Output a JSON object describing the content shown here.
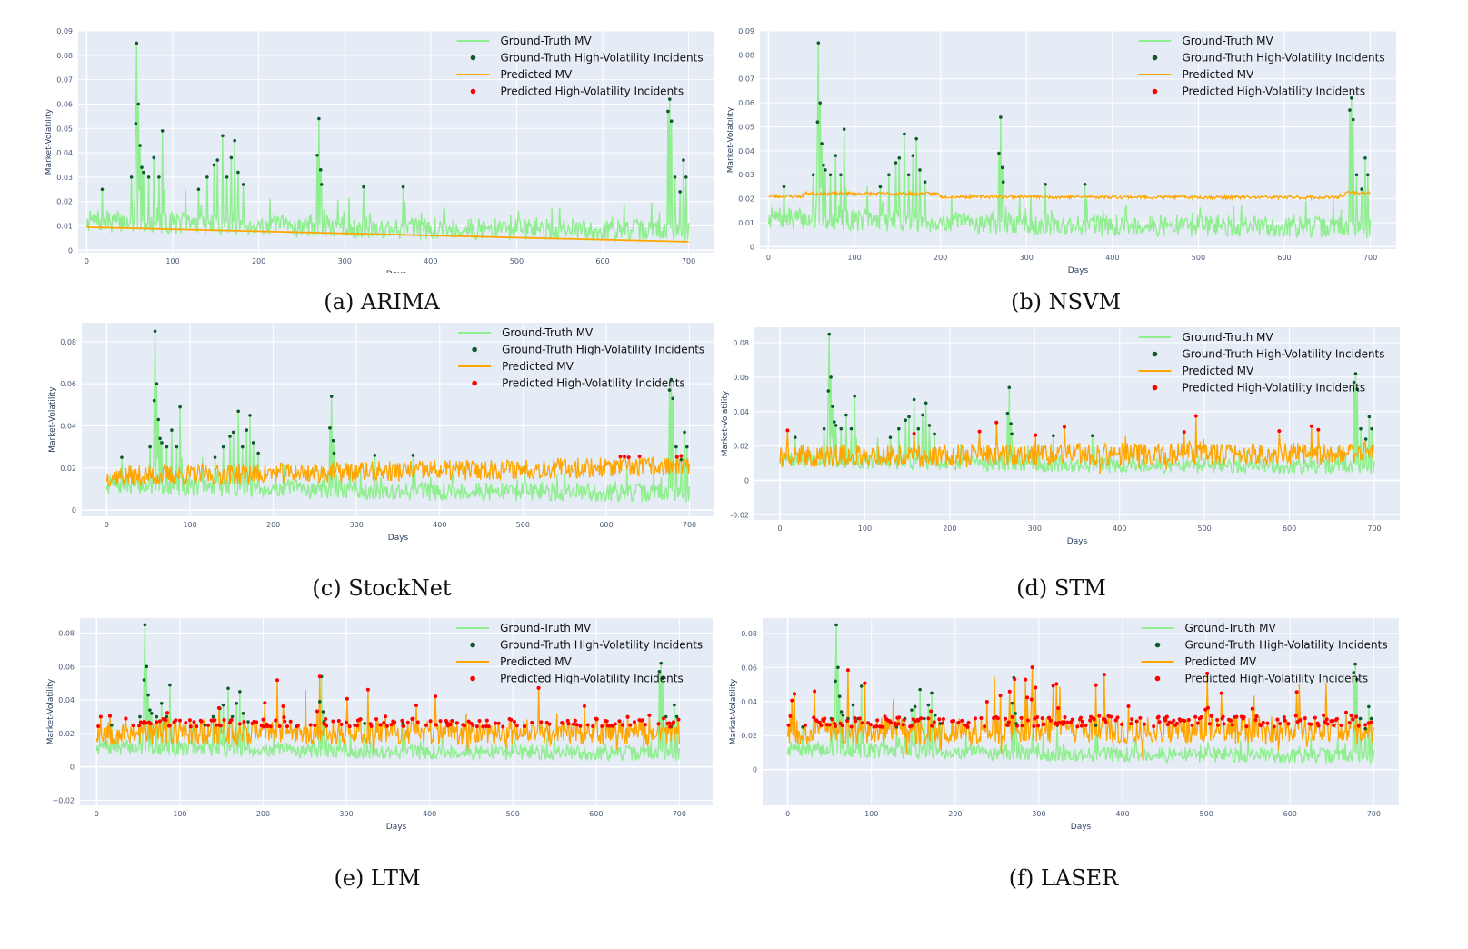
{
  "colors": {
    "background": "#ffffff",
    "plot_bg": "#e5ecf6",
    "grid": "#ffffff",
    "ground_truth_line": "#90ee90",
    "ground_truth_marker": "#0f5a2a",
    "predicted_line": "#ffa500",
    "predicted_marker": "#ff0000"
  },
  "legend": {
    "entries": [
      "Ground-Truth MV",
      "Ground-Truth High-Volatility Incidents",
      "Predicted MV",
      "Predicted High-Volatility Incidents"
    ],
    "placement": "top-right"
  },
  "chart_data": [
    {
      "caption": "(a) ARIMA",
      "type": "line",
      "xlabel": "Days",
      "ylabel": "Market-Volatility",
      "xlim": [
        -10,
        730
      ],
      "ylim": [
        -0.001,
        0.09
      ],
      "xticks": [
        0,
        100,
        200,
        300,
        400,
        500,
        600,
        700
      ],
      "yticks": [
        0,
        0.01,
        0.02,
        0.03,
        0.04,
        0.05,
        0.06,
        0.07,
        0.08,
        0.09
      ],
      "ytick_labels": [
        "0",
        "0.01",
        "0.02",
        "0.03",
        "0.04",
        "0.05",
        "0.06",
        "0.07",
        "0.08",
        "0.09"
      ],
      "grid": true,
      "legend_position": "top-right",
      "predicted_model": "linear",
      "predicted_start": 0.0095,
      "predicted_end": 0.0035,
      "predicted_noise": 0,
      "predicted_offset": 0,
      "predicted_spikes": 0,
      "predicted_threshold": 1,
      "predicted_incidents": 0,
      "seed": 11
    },
    {
      "caption": "(b) NSVM",
      "type": "line",
      "xlabel": "Days",
      "ylabel": "Market-Volatility",
      "xlim": [
        -10,
        730
      ],
      "ylim": [
        -0.001,
        0.09
      ],
      "xticks": [
        0,
        100,
        200,
        300,
        400,
        500,
        600,
        700
      ],
      "yticks": [
        0,
        0.01,
        0.02,
        0.03,
        0.04,
        0.05,
        0.06,
        0.07,
        0.08,
        0.09
      ],
      "ytick_labels": [
        "0",
        "0.01",
        "0.02",
        "0.03",
        "0.04",
        "0.05",
        "0.06",
        "0.07",
        "0.08",
        "0.09"
      ],
      "grid": true,
      "legend_position": "top-right",
      "predicted_model": "flat",
      "predicted_start": 0.021,
      "predicted_end": 0.0205,
      "predicted_noise": 0.0007,
      "predicted_offset": 0,
      "predicted_spikes": 0,
      "predicted_threshold": 0.0235,
      "predicted_incidents": 14,
      "seed": 23
    },
    {
      "caption": "(c) StockNet",
      "type": "line",
      "xlabel": "Days",
      "ylabel": "Market-Volatility",
      "xlim": [
        -30,
        730
      ],
      "ylim": [
        -0.003,
        0.089
      ],
      "xticks": [
        0,
        100,
        200,
        300,
        400,
        500,
        600,
        700
      ],
      "yticks": [
        0,
        0.02,
        0.04,
        0.06,
        0.08
      ],
      "ytick_labels": [
        "0",
        "0.02",
        "0.04",
        "0.06",
        "0.08"
      ],
      "grid": true,
      "legend_position": "top-right",
      "predicted_model": "noisy",
      "predicted_start": 0.016,
      "predicted_end": 0.021,
      "predicted_noise": 0.005,
      "predicted_offset": 0,
      "predicted_spikes": 0,
      "predicted_threshold": 0.025,
      "predicted_incidents": 70,
      "seed": 37
    },
    {
      "caption": "(d) STM",
      "type": "line",
      "xlabel": "Days",
      "ylabel": "Market-Volatility",
      "xlim": [
        -30,
        730
      ],
      "ylim": [
        -0.023,
        0.089
      ],
      "xticks": [
        0,
        100,
        200,
        300,
        400,
        500,
        600,
        700
      ],
      "yticks": [
        -0.02,
        0,
        0.02,
        0.04,
        0.06,
        0.08
      ],
      "ytick_labels": [
        "-0.02",
        "0",
        "0.02",
        "0.04",
        "0.06",
        "0.08"
      ],
      "grid": true,
      "legend_position": "top-right",
      "predicted_model": "noisy",
      "predicted_start": 0.014,
      "predicted_end": 0.016,
      "predicted_noise": 0.0065,
      "predicted_offset": 0,
      "predicted_spikes": 0.012,
      "predicted_threshold": 0.026,
      "predicted_incidents": 50,
      "seed": 41
    },
    {
      "caption": "(e) LTM",
      "type": "line",
      "xlabel": "Days",
      "ylabel": "Market-Volatility",
      "xlim": [
        -20,
        740
      ],
      "ylim": [
        -0.023,
        0.089
      ],
      "xticks": [
        0,
        100,
        200,
        300,
        400,
        500,
        600,
        700
      ],
      "yticks": [
        -0.02,
        0,
        0.02,
        0.04,
        0.06,
        0.08
      ],
      "ytick_labels": [
        "−0.02",
        "0",
        "0.02",
        "0.04",
        "0.06",
        "0.08"
      ],
      "grid": true,
      "legend_position": "top-right",
      "predicted_model": "noisy",
      "predicted_start": 0.021,
      "predicted_end": 0.021,
      "predicted_noise": 0.008,
      "predicted_offset": 0,
      "predicted_spikes": 0.02,
      "predicted_threshold": 0.024,
      "predicted_incidents": 200,
      "seed": 53
    },
    {
      "caption": "(f) LASER",
      "type": "line",
      "xlabel": "Days",
      "ylabel": "Market-Volatility",
      "xlim": [
        -30,
        730
      ],
      "ylim": [
        -0.021,
        0.089
      ],
      "xticks": [
        0,
        100,
        200,
        300,
        400,
        500,
        600,
        700
      ],
      "yticks": [
        0,
        0.02,
        0.04,
        0.06,
        0.08
      ],
      "ytick_labels": [
        "0",
        "0.02",
        "0.04",
        "0.06",
        "0.08"
      ],
      "grid": true,
      "legend_position": "top-right",
      "predicted_model": "noisy",
      "predicted_start": 0.023,
      "predicted_end": 0.024,
      "predicted_noise": 0.008,
      "predicted_offset": 0,
      "predicted_spikes": 0.022,
      "predicted_threshold": 0.025,
      "predicted_incidents": 260,
      "seed": 67
    }
  ],
  "ground_truth_spikes": [
    {
      "day": 18,
      "value": 0.025
    },
    {
      "day": 52,
      "value": 0.03
    },
    {
      "day": 57,
      "value": 0.052
    },
    {
      "day": 58,
      "value": 0.085
    },
    {
      "day": 60,
      "value": 0.06
    },
    {
      "day": 62,
      "value": 0.043
    },
    {
      "day": 64,
      "value": 0.034
    },
    {
      "day": 66,
      "value": 0.032
    },
    {
      "day": 72,
      "value": 0.03
    },
    {
      "day": 78,
      "value": 0.038
    },
    {
      "day": 84,
      "value": 0.03
    },
    {
      "day": 88,
      "value": 0.049
    },
    {
      "day": 130,
      "value": 0.025
    },
    {
      "day": 140,
      "value": 0.03
    },
    {
      "day": 148,
      "value": 0.035
    },
    {
      "day": 152,
      "value": 0.037
    },
    {
      "day": 158,
      "value": 0.047
    },
    {
      "day": 163,
      "value": 0.03
    },
    {
      "day": 168,
      "value": 0.038
    },
    {
      "day": 172,
      "value": 0.045
    },
    {
      "day": 176,
      "value": 0.032
    },
    {
      "day": 182,
      "value": 0.027
    },
    {
      "day": 268,
      "value": 0.039
    },
    {
      "day": 270,
      "value": 0.054
    },
    {
      "day": 272,
      "value": 0.033
    },
    {
      "day": 273,
      "value": 0.027
    },
    {
      "day": 322,
      "value": 0.026
    },
    {
      "day": 368,
      "value": 0.026
    },
    {
      "day": 676,
      "value": 0.057
    },
    {
      "day": 678,
      "value": 0.062
    },
    {
      "day": 680,
      "value": 0.053
    },
    {
      "day": 684,
      "value": 0.03
    },
    {
      "day": 690,
      "value": 0.024
    },
    {
      "day": 694,
      "value": 0.037
    },
    {
      "day": 697,
      "value": 0.03
    }
  ],
  "ground_truth_base": {
    "days": 700,
    "level_start": 0.012,
    "level_mid": 0.009,
    "level_end": 0.008,
    "noise": 0.0045,
    "threshold": 0.024
  }
}
